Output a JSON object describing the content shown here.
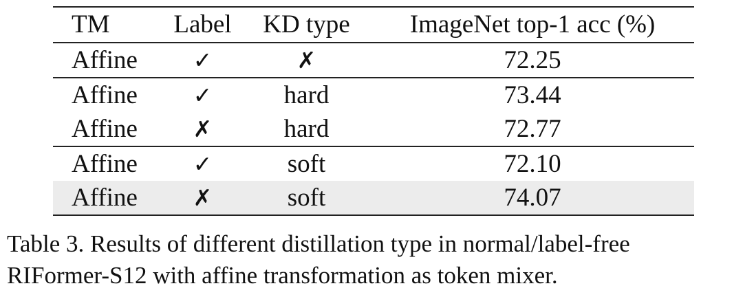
{
  "table": {
    "headers": [
      "TM",
      "Label",
      "KD type",
      "ImageNet top-1 acc (%)"
    ],
    "rows": [
      {
        "tm": "Affine",
        "label": "✓",
        "kd": "✗",
        "acc": "72.25"
      },
      {
        "tm": "Affine",
        "label": "✓",
        "kd": "hard",
        "acc": "73.44"
      },
      {
        "tm": "Affine",
        "label": "✗",
        "kd": "hard",
        "acc": "72.77"
      },
      {
        "tm": "Affine",
        "label": "✓",
        "kd": "soft",
        "acc": "72.10"
      },
      {
        "tm": "Affine",
        "label": "✗",
        "kd": "soft",
        "acc": "74.07"
      }
    ]
  },
  "caption": {
    "line1": "Table 3.  Results of different distillation type in normal/label-free",
    "line2": "RIFormer-S12 with affine transformation as token mixer."
  }
}
